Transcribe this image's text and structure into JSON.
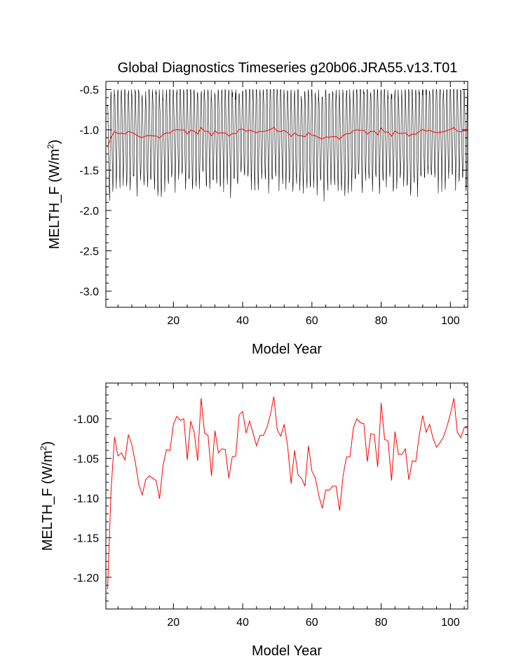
{
  "title": "Global Diagnostics Timeseries g20b06.JRA55.v13.T01",
  "charts": [
    {
      "type": "line",
      "xlabel": "Model Year",
      "ylabel": "MELTH_F (W/m",
      "ylabel_sup": "2",
      "ylabel_close": ")",
      "xlim": [
        0.5,
        105
      ],
      "ylim": [
        -3.2,
        -0.4
      ],
      "xticks": [
        "20",
        "40",
        "60",
        "80",
        "100"
      ],
      "yticks": [
        "-0.5",
        "-1.0",
        "-1.5",
        "-2.0",
        "-2.5",
        "-3.0"
      ],
      "series": [
        {
          "role": "monthly",
          "color": "#000000",
          "max_range": [
            -0.52,
            -0.65
          ],
          "min_range": [
            -1.45,
            -2.05
          ],
          "note_period_years": 1
        },
        {
          "role": "annual",
          "color": "#ff0000"
        }
      ]
    },
    {
      "type": "line",
      "xlabel": "Model Year",
      "ylabel": "MELTH_F (W/m",
      "ylabel_sup": "2",
      "ylabel_close": ")",
      "xlim": [
        0.5,
        105
      ],
      "ylim": [
        -1.24,
        -0.955
      ],
      "xticks": [
        "20",
        "40",
        "60",
        "80",
        "100"
      ],
      "yticks": [
        "-1.00",
        "-1.05",
        "-1.10",
        "-1.15",
        "-1.20"
      ],
      "series": [
        {
          "role": "annual",
          "color": "#ff0000"
        }
      ]
    }
  ],
  "chart_data": {
    "type": "line",
    "title": "Global Diagnostics Timeseries g20b06.JRA55.v13.T01",
    "xlabel": "Model Year",
    "ylabel": "MELTH_F (W/m2)",
    "x": [
      1,
      2,
      3,
      4,
      5,
      6,
      7,
      8,
      9,
      10,
      11,
      12,
      13,
      14,
      15,
      16,
      17,
      18,
      19,
      20,
      21,
      22,
      23,
      24,
      25,
      26,
      27,
      28,
      29,
      30,
      31,
      32,
      33,
      34,
      35,
      36,
      37,
      38,
      39,
      40,
      41,
      42,
      43,
      44,
      45,
      46,
      47,
      48,
      49,
      50,
      51,
      52,
      53,
      54,
      55,
      56,
      57,
      58,
      59,
      60,
      61,
      62,
      63,
      64,
      65,
      66,
      67,
      68,
      69,
      70,
      71,
      72,
      73,
      74,
      75,
      76,
      77,
      78,
      79,
      80,
      81,
      82,
      83,
      84,
      85,
      86,
      87,
      88,
      89,
      90,
      91,
      92,
      93,
      94,
      95,
      96,
      97,
      98,
      99,
      100,
      101,
      102,
      103,
      104,
      105
    ],
    "series": [
      {
        "name": "",
        "values": [
          -1.215,
          -1.09,
          -1.023,
          -1.047,
          -1.043,
          -1.052,
          -1.02,
          -1.033,
          -1.055,
          -1.083,
          -1.096,
          -1.077,
          -1.072,
          -1.075,
          -1.078,
          -1.101,
          -1.059,
          -1.039,
          -1.04,
          -1.007,
          -0.997,
          -1.002,
          -1.0,
          -1.052,
          -1.003,
          -1.017,
          -1.053,
          -0.974,
          -1.018,
          -1.021,
          -1.072,
          -1.015,
          -1.043,
          -1.038,
          -1.039,
          -1.075,
          -1.048,
          -1.047,
          -0.995,
          -0.991,
          -1.018,
          -1.003,
          -1.018,
          -1.034,
          -1.021,
          -1.021,
          -1.011,
          -0.995,
          -0.972,
          -1.014,
          -1.022,
          -1.007,
          -1.035,
          -1.082,
          -1.04,
          -1.071,
          -1.075,
          -1.085,
          -1.034,
          -1.066,
          -1.075,
          -1.097,
          -1.113,
          -1.09,
          -1.09,
          -1.085,
          -1.085,
          -1.116,
          -1.072,
          -1.048,
          -1.048,
          -1.011,
          -1.0,
          -1.005,
          -1.006,
          -1.054,
          -1.019,
          -1.02,
          -1.061,
          -0.98,
          -1.026,
          -1.028,
          -1.078,
          -1.016,
          -1.045,
          -1.045,
          -1.038,
          -1.077,
          -1.053,
          -1.054,
          -1.021,
          -0.996,
          -1.017,
          -1.007,
          -1.025,
          -1.036,
          -1.03,
          -1.023,
          -1.01,
          -0.994,
          -0.974,
          -1.017,
          -1.024,
          -1.011,
          -1.012
        ]
      }
    ],
    "ylim_top": [
      -3.2,
      -0.4
    ],
    "ylim_bottom": [
      -1.24,
      -0.955
    ],
    "grid": false
  }
}
